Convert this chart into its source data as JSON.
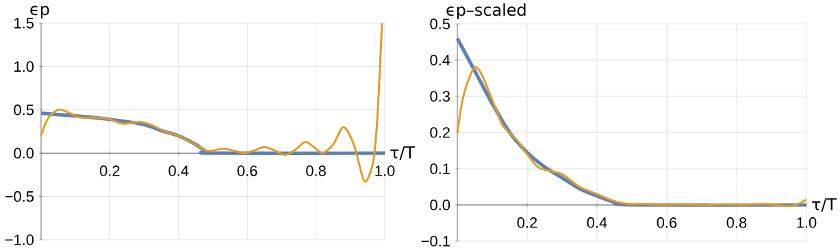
{
  "chart_data": [
    {
      "type": "line",
      "xlabel": "τ/T",
      "ylabel": "ϵp",
      "xlim": [
        0,
        1
      ],
      "ylim": [
        -1,
        1.5
      ],
      "xticks": [
        0.2,
        0.4,
        0.6,
        0.8,
        {
          "value": 1,
          "label": "1.0"
        }
      ],
      "yticks": [
        {
          "value": -1,
          "label": "−1.0"
        },
        {
          "value": -0.5,
          "label": "−0.5"
        },
        {
          "value": 0,
          "label": "0.0"
        },
        0.5,
        {
          "value": 1,
          "label": "1.0"
        },
        1.5
      ],
      "grid": true,
      "series": [
        {
          "color": "#5e81b5",
          "x": [
            0,
            0.1,
            0.2,
            0.3,
            0.35,
            0.4,
            0.45,
            0.48,
            0.5,
            1.0
          ],
          "values": [
            0.46,
            0.43,
            0.39,
            0.33,
            0.26,
            0.2,
            0.1,
            0.02,
            0,
            0
          ]
        },
        {
          "color": "#e19c24",
          "x": [
            0,
            0.02,
            0.05,
            0.08,
            0.1,
            0.12,
            0.17,
            0.2,
            0.24,
            0.29,
            0.33,
            0.36,
            0.4,
            0.44,
            0.48,
            0.5,
            0.53,
            0.56,
            0.59,
            0.62,
            0.65,
            0.68,
            0.71,
            0.74,
            0.77,
            0.8,
            0.82,
            0.85,
            0.88,
            0.91,
            0.94,
            0.96,
            0.97,
            0.98,
            0.992
          ],
          "values": [
            0.2,
            0.4,
            0.5,
            0.47,
            0.43,
            0.41,
            0.41,
            0.39,
            0.34,
            0.36,
            0.31,
            0.25,
            0.2,
            0.12,
            0.03,
            0.03,
            0.05,
            0.03,
            0.0,
            0.03,
            0.07,
            0.03,
            -0.02,
            0.04,
            0.13,
            0.05,
            0.0,
            0.1,
            0.3,
            0.1,
            -0.32,
            -0.2,
            0.0,
            0.5,
            1.5
          ]
        }
      ]
    },
    {
      "type": "line",
      "xlabel": "τ/T",
      "ylabel": "ϵp–scaled",
      "xlim": [
        0,
        1
      ],
      "ylim": [
        -0.1,
        0.5
      ],
      "xticks": [
        0.2,
        0.4,
        0.6,
        0.8,
        {
          "value": 1,
          "label": "1.0"
        }
      ],
      "yticks": [
        {
          "value": -0.1,
          "label": "−0.1"
        },
        {
          "value": 0,
          "label": "0.0"
        },
        0.1,
        0.2,
        0.3,
        0.4,
        0.5
      ],
      "grid": true,
      "series": [
        {
          "color": "#5e81b5",
          "x": [
            0,
            0.05,
            0.1,
            0.15,
            0.2,
            0.25,
            0.3,
            0.35,
            0.4,
            0.45,
            0.5,
            1.0
          ],
          "values": [
            0.46,
            0.37,
            0.28,
            0.2,
            0.145,
            0.105,
            0.075,
            0.045,
            0.025,
            0.008,
            0,
            0
          ]
        },
        {
          "color": "#e19c24",
          "x": [
            0,
            0.015,
            0.03,
            0.05,
            0.07,
            0.1,
            0.13,
            0.17,
            0.2,
            0.23,
            0.26,
            0.3,
            0.35,
            0.4,
            0.45,
            0.5,
            0.53,
            0.6,
            0.65,
            0.71,
            0.77,
            0.82,
            0.88,
            0.94,
            0.97,
            1.0
          ],
          "values": [
            0.2,
            0.29,
            0.34,
            0.38,
            0.36,
            0.29,
            0.22,
            0.18,
            0.14,
            0.105,
            0.095,
            0.085,
            0.05,
            0.03,
            0.01,
            0.002,
            0.003,
            0,
            0.002,
            -0.001,
            0.002,
            0,
            0.003,
            -0.003,
            0,
            0.015
          ]
        }
      ]
    }
  ]
}
